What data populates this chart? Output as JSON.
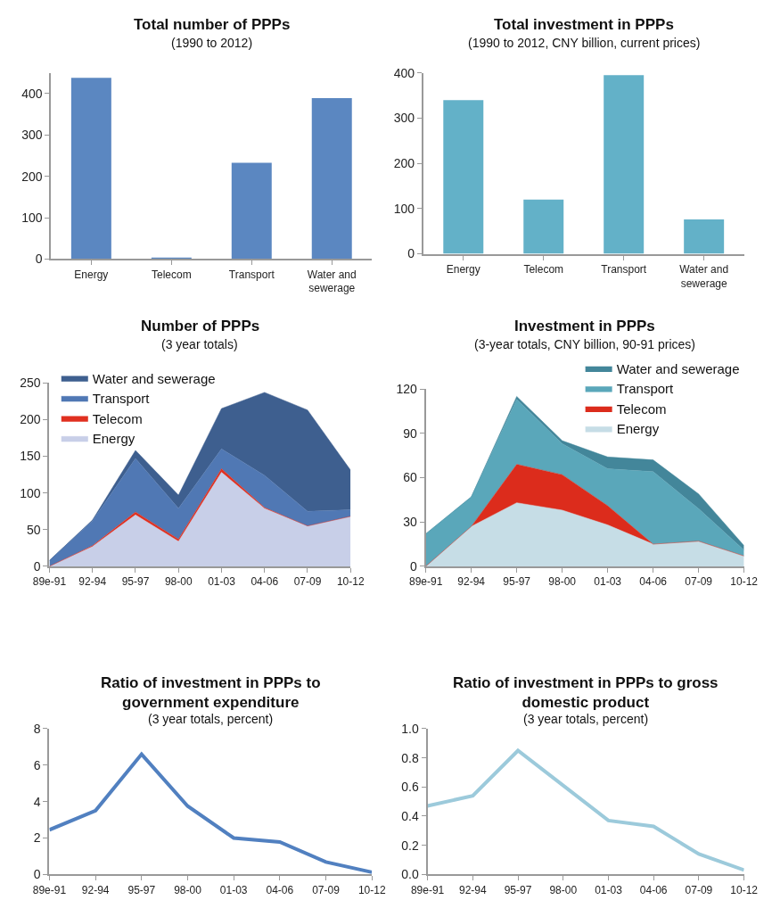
{
  "chart_data": [
    {
      "type": "bar",
      "title": "Total number of PPPs",
      "subtitle": "(1990 to 2012)",
      "categories": [
        "Energy",
        "Telecom",
        "Transport",
        "Water and sewerage"
      ],
      "values": [
        438,
        3,
        233,
        389
      ],
      "color": "#5b87c1",
      "ylim": [
        0,
        450
      ],
      "yticks": [
        0,
        100,
        200,
        300,
        400
      ]
    },
    {
      "type": "bar",
      "title": "Total investment in PPPs",
      "subtitle": "(1990 to 2012, CNY billion, current prices)",
      "categories": [
        "Energy",
        "Telecom",
        "Transport",
        "Water and sewerage"
      ],
      "values": [
        340,
        120,
        395,
        76
      ],
      "color": "#63b1c8",
      "ylim": [
        0,
        400
      ],
      "yticks": [
        0,
        100,
        200,
        300,
        400
      ]
    },
    {
      "type": "area",
      "stacked": true,
      "title": "Number of PPPs",
      "subtitle": "(3 year totals)",
      "categories": [
        "89e-91",
        "92-94",
        "95-97",
        "98-00",
        "01-03",
        "04-06",
        "07-09",
        "10-12"
      ],
      "ylim": [
        0,
        250
      ],
      "yticks": [
        0,
        50,
        100,
        150,
        200,
        250
      ],
      "legend": "top left",
      "series": [
        {
          "name": "Energy",
          "color": "#c8cfe8",
          "values": [
            0,
            27,
            70,
            34,
            128,
            79,
            55,
            68
          ]
        },
        {
          "name": "Telecom",
          "color": "#e03020",
          "values": [
            0,
            1,
            4,
            3,
            5,
            1,
            0,
            0
          ]
        },
        {
          "name": "Transport",
          "color": "#5078b4",
          "values": [
            8,
            34,
            73,
            42,
            27,
            44,
            20,
            9
          ]
        },
        {
          "name": "Water and sewerage",
          "color": "#3e5f8f",
          "values": [
            0,
            1,
            11,
            18,
            55,
            113,
            138,
            54
          ]
        }
      ]
    },
    {
      "type": "area",
      "stacked": true,
      "title": "Investment in PPPs",
      "subtitle": "(3-year totals, CNY billion, 90-91 prices)",
      "categories": [
        "89e-91",
        "92-94",
        "95-97",
        "98-00",
        "01-03",
        "04-06",
        "07-09",
        "10-12"
      ],
      "ylim": [
        0,
        120
      ],
      "yticks": [
        0,
        30,
        60,
        90,
        120
      ],
      "legend": "top right",
      "series": [
        {
          "name": "Energy",
          "color": "#c6dde6",
          "values": [
            0,
            27,
            43,
            38,
            28,
            15,
            17,
            7
          ]
        },
        {
          "name": "Telecom",
          "color": "#dc2c1c",
          "values": [
            0,
            0,
            26,
            24,
            13,
            0,
            0,
            0
          ]
        },
        {
          "name": "Transport",
          "color": "#5aa7ba",
          "values": [
            22,
            20,
            44,
            21,
            25,
            49,
            22,
            4
          ]
        },
        {
          "name": "Water and sewerage",
          "color": "#43869a",
          "values": [
            0,
            0,
            2,
            2,
            8,
            8,
            10,
            3
          ]
        }
      ]
    },
    {
      "type": "line",
      "title": "Ratio of investment in PPPs to government expenditure",
      "subtitle": "(3 year totals, percent)",
      "categories": [
        "89e-91",
        "92-94",
        "95-97",
        "98-00",
        "01-03",
        "04-06",
        "07-09",
        "10-12"
      ],
      "values": [
        2.45,
        3.5,
        6.6,
        3.75,
        2.0,
        1.78,
        0.68,
        0.12
      ],
      "color": "#5180c0",
      "ylim": [
        0,
        8
      ],
      "yticks": [
        0,
        2,
        4,
        6,
        8
      ],
      "marker": "none",
      "line_style": "solid"
    },
    {
      "type": "line",
      "title": "Ratio of investment in PPPs to gross domestic product",
      "subtitle": "(3 year totals, percent)",
      "categories": [
        "89e-91",
        "92-94",
        "95-97",
        "98-00",
        "01-03",
        "04-06",
        "07-09",
        "10-12"
      ],
      "values": [
        0.47,
        0.54,
        0.85,
        0.61,
        0.37,
        0.33,
        0.14,
        0.03
      ],
      "color": "#9ccadb",
      "ylim": [
        0,
        1.0
      ],
      "yticks": [
        {
          "value": 0,
          "label": "0.0"
        },
        {
          "value": 0.2,
          "label": "0.2"
        },
        {
          "value": 0.4,
          "label": "0.4"
        },
        {
          "value": 0.6,
          "label": "0.6"
        },
        {
          "value": 0.8,
          "label": "0.8"
        },
        {
          "value": 1.0,
          "label": "1.0"
        }
      ],
      "marker": "none",
      "line_style": "solid"
    }
  ]
}
